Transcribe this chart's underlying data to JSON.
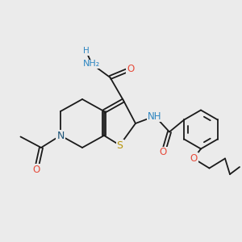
{
  "bg_color": "#ebebeb",
  "bond_color": "#1a1a1a",
  "bond_width": 1.3,
  "atom_colors": {
    "N": "#1a5276",
    "N_amide": "#2e86c1",
    "O": "#e74c3c",
    "S": "#b7950b",
    "NH": "#2e86c1",
    "C": "#1a1a1a"
  },
  "font_size": 8.5
}
